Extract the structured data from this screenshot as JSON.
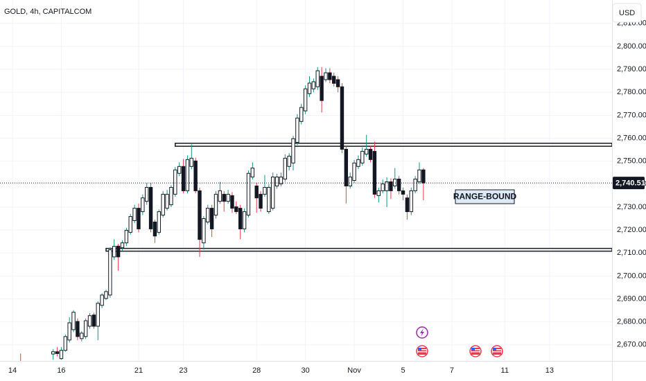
{
  "chart_data": {
    "type": "candlestick",
    "title": "GOLD, 4h, CAPITALCOM",
    "currency": "USD",
    "categories": [
      "14",
      null,
      null,
      null,
      null,
      null,
      null,
      null,
      null,
      null,
      null,
      null,
      "16",
      null,
      null,
      null,
      null,
      null,
      null,
      null,
      null,
      null,
      null,
      null,
      null,
      null,
      null,
      null,
      null,
      null,
      null,
      "21",
      null,
      null,
      null,
      null,
      null,
      null,
      null,
      null,
      null,
      null,
      "23",
      null,
      null,
      null,
      null,
      null,
      null,
      null,
      null,
      null,
      null,
      null,
      null,
      null,
      null,
      null,
      null,
      null,
      "28",
      null,
      null,
      null,
      null,
      null,
      null,
      null,
      null,
      null,
      null,
      null,
      "30",
      null,
      null,
      null,
      null,
      null,
      null,
      null,
      null,
      null,
      null,
      null,
      "Nov",
      null,
      null,
      null,
      null,
      null,
      null,
      null,
      null,
      null,
      null,
      null,
      "5",
      null,
      null,
      null,
      null,
      null,
      null,
      null,
      null,
      null,
      null,
      null,
      "7",
      null,
      null,
      null,
      null,
      null,
      null,
      null,
      null,
      null,
      null,
      null,
      null,
      "11",
      null,
      null,
      null,
      null,
      null,
      null,
      null,
      null,
      null,
      null,
      "13",
      null
    ],
    "open": [
      null,
      null,
      2662.5,
      null,
      null,
      null,
      null,
      null,
      null,
      null,
      2666.0,
      2667.0,
      2664.0,
      2667.6,
      2672.1,
      2676.6,
      2680.2,
      2672.7,
      2673.6,
      2678.1,
      2683.0,
      2678.1,
      2687.2,
      2690.2,
      2691.7,
      2708.3,
      2713.0,
      2712.3,
      2714.4,
      2719.0,
      2724.1,
      2729.5,
      2728.0,
      2732.5,
      2738.6,
      2723.5,
      2719.0,
      2726.5,
      2729.5,
      2731.0,
      2735.6,
      2744.7,
      2747.7,
      2737.1,
      2747.7,
      2750.1,
      2737.1,
      2714.4,
      2723.5,
      2729.5,
      2726.5,
      2732.5,
      2735.6,
      2732.5,
      2735.0,
      2730.1,
      2729.5,
      2720.5,
      2726.5,
      2743.1,
      2739.2,
      2735.6,
      2735.6,
      2728.0,
      2729.5,
      2739.2,
      2740.1,
      2742.2,
      2747.7,
      2749.2,
      2758.2,
      2767.3,
      2771.9,
      2779.4,
      2781.5,
      2782.4,
      2787.0,
      2785.5,
      2788.5,
      2787.0,
      2785.5,
      2782.4,
      2755.2,
      2739.2,
      2741.6,
      2747.7,
      2749.2,
      2753.1,
      2755.2,
      2754.3,
      2735.0,
      2737.1,
      2737.1,
      2741.0,
      2739.2,
      2742.2,
      2737.1,
      2734.0,
      2728.0,
      2737.1,
      2741.0,
      2746.2,
      null,
      null,
      null,
      null,
      null,
      null,
      null,
      null,
      null,
      null,
      null,
      null,
      null,
      null,
      null,
      null,
      null,
      null,
      null,
      null,
      null,
      null,
      null,
      null,
      null,
      null,
      null,
      null,
      null,
      null,
      null,
      null
    ],
    "high": [
      null,
      null,
      2666.2,
      null,
      null,
      null,
      null,
      null,
      null,
      null,
      2668.2,
      2669.0,
      2669.0,
      2674.5,
      2682.0,
      2685.1,
      2681.5,
      2676.0,
      2681.5,
      2683.8,
      2684.0,
      2689.0,
      2692.5,
      2694.0,
      2712.5,
      2716.0,
      2714.0,
      2715.5,
      2721.0,
      2727.0,
      2731.0,
      2731.5,
      2735.5,
      2740.5,
      2740.5,
      2724.5,
      2729.0,
      2737.0,
      2737.5,
      2739.5,
      2747.5,
      2749.5,
      2751.0,
      2752.5,
      2757.3,
      2751.5,
      2738.5,
      2726.0,
      2731.0,
      2731.0,
      2737.0,
      2741.0,
      2737.0,
      2737.5,
      2736.5,
      2732.5,
      2731.0,
      2729.5,
      2746.0,
      2749.5,
      2740.5,
      2737.0,
      2744.0,
      2740.0,
      2745.0,
      2744.5,
      2745.0,
      2753.0,
      2753.5,
      2761.0,
      2770.5,
      2775.0,
      2783.0,
      2787.0,
      2786.0,
      2791.0,
      2791.0,
      2790.5,
      2790.5,
      2788.5,
      2787.0,
      2784.0,
      2756.5,
      2745.0,
      2750.5,
      2752.5,
      2756.0,
      2761.5,
      2756.5,
      2758.5,
      2738.5,
      2742.0,
      2743.0,
      2742.5,
      2747.0,
      2743.5,
      2738.5,
      2735.5,
      2738.5,
      2743.5,
      2749.5,
      2747.0,
      null,
      null,
      null,
      null,
      null,
      null,
      null,
      null,
      null,
      null,
      null,
      null,
      null,
      null,
      null,
      null,
      null,
      null,
      null,
      null,
      null,
      null,
      null,
      null,
      null,
      null,
      null,
      null,
      null,
      null,
      null,
      null
    ],
    "low": [
      null,
      null,
      2660.0,
      null,
      null,
      null,
      null,
      null,
      null,
      null,
      2663.5,
      2665.0,
      2663.5,
      2667.0,
      2671.0,
      2675.5,
      2672.0,
      2671.5,
      2672.5,
      2677.0,
      2677.0,
      2672.0,
      2686.0,
      2689.5,
      2690.5,
      2707.0,
      2702.3,
      2711.0,
      2713.0,
      2718.0,
      2723.0,
      2719.0,
      2726.5,
      2731.0,
      2719.0,
      2714.4,
      2718.0,
      2725.5,
      2728.5,
      2730.0,
      2734.5,
      2743.5,
      2736.0,
      2736.0,
      2746.5,
      2736.0,
      2708.3,
      2711.5,
      2722.5,
      2717.0,
      2725.0,
      2731.5,
      2728.0,
      2731.5,
      2727.5,
      2727.0,
      2716.0,
      2719.0,
      2725.5,
      2742.0,
      2727.5,
      2728.0,
      2734.5,
      2727.0,
      2728.5,
      2738.0,
      2739.0,
      2741.0,
      2746.0,
      2746.0,
      2757.0,
      2766.0,
      2770.5,
      2778.0,
      2780.0,
      2781.0,
      2771.2,
      2784.5,
      2784.0,
      2782.5,
      2780.0,
      2753.5,
      2731.6,
      2738.0,
      2740.5,
      2746.5,
      2748.0,
      2752.0,
      2749.5,
      2734.0,
      2732.0,
      2736.0,
      2730.0,
      2733.5,
      2738.0,
      2735.5,
      2733.0,
      2724.5,
      2726.5,
      2736.0,
      2740.0,
      2733.0,
      null,
      null,
      null,
      null,
      null,
      null,
      null,
      null,
      null,
      null,
      null,
      null,
      null,
      null,
      null,
      null,
      null,
      null,
      null,
      null,
      null,
      null,
      null,
      null,
      null,
      null,
      null,
      null,
      null,
      null,
      null,
      null
    ],
    "close": [
      null,
      null,
      2661.0,
      null,
      null,
      null,
      null,
      null,
      null,
      null,
      2667.0,
      2666.2,
      2667.6,
      2673.6,
      2679.6,
      2684.2,
      2673.6,
      2675.1,
      2680.5,
      2682.7,
      2678.1,
      2688.1,
      2691.7,
      2693.2,
      2711.4,
      2712.9,
      2708.3,
      2714.4,
      2719.9,
      2725.9,
      2729.5,
      2720.5,
      2734.0,
      2738.6,
      2720.5,
      2717.4,
      2728.0,
      2735.6,
      2735.6,
      2738.6,
      2746.2,
      2747.7,
      2737.1,
      2750.7,
      2751.3,
      2737.1,
      2715.9,
      2725.0,
      2729.5,
      2720.5,
      2735.6,
      2737.1,
      2732.5,
      2735.6,
      2729.5,
      2728.0,
      2720.5,
      2728.0,
      2744.7,
      2747.0,
      2734.0,
      2729.5,
      2738.6,
      2738.6,
      2743.1,
      2743.1,
      2743.1,
      2751.3,
      2752.2,
      2759.8,
      2768.8,
      2773.4,
      2781.5,
      2784.0,
      2784.6,
      2789.4,
      2776.4,
      2788.5,
      2785.5,
      2783.9,
      2782.4,
      2755.2,
      2739.2,
      2743.1,
      2749.2,
      2750.7,
      2754.3,
      2755.2,
      2750.7,
      2735.6,
      2737.1,
      2740.1,
      2741.0,
      2737.1,
      2742.2,
      2737.1,
      2735.6,
      2728.0,
      2737.1,
      2742.2,
      2746.2,
      2740.51,
      null,
      null,
      null,
      null,
      null,
      null,
      null,
      null,
      null,
      null,
      null,
      null,
      null,
      null,
      null,
      null,
      null,
      null,
      null,
      null,
      null,
      null,
      null,
      null,
      null,
      null,
      null,
      null,
      null,
      null,
      null,
      null
    ],
    "up_color": "#089981",
    "down_color": "#f23645",
    "body_up_color": "#ffffff",
    "body_down_color": "#131722",
    "ylim": [
      2663.0,
      2820.2
    ],
    "yticks": [
      {
        "value": 2670,
        "label": "2,670.00"
      },
      {
        "value": 2680,
        "label": "2,680.00"
      },
      {
        "value": 2690,
        "label": "2,690.00"
      },
      {
        "value": 2700,
        "label": "2,700.00"
      },
      {
        "value": 2710,
        "label": "2,710.00"
      },
      {
        "value": 2720,
        "label": "2,720.00"
      },
      {
        "value": 2730,
        "label": "2,730.00"
      },
      {
        "value": 2740,
        "label": "2,740.00"
      },
      {
        "value": 2750,
        "label": "2,750.00"
      },
      {
        "value": 2760,
        "label": "2,760.00"
      },
      {
        "value": 2770,
        "label": "2,770.00"
      },
      {
        "value": 2780,
        "label": "2,780.00"
      },
      {
        "value": 2790,
        "label": "2,790.00"
      },
      {
        "value": 2800,
        "label": "2,800.00"
      },
      {
        "value": 2810,
        "label": "2,810.00"
      }
    ],
    "grid": true,
    "last_price": {
      "value": 2740.51,
      "label": "2,740.51"
    },
    "zones": [
      {
        "top": 2757.8,
        "bottom": 2756.5
      },
      {
        "top": 2712.0,
        "bottom": 2710.8
      }
    ],
    "annotation": "RANGE-BOUND"
  }
}
